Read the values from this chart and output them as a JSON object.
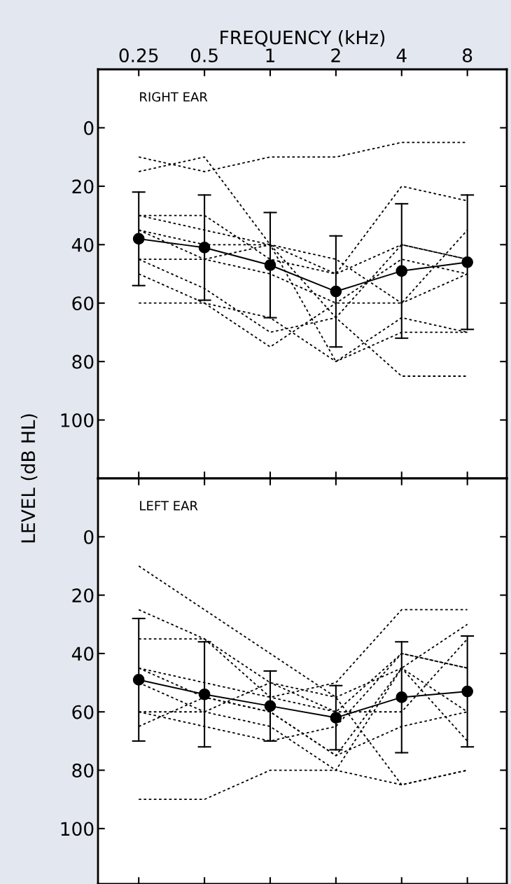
{
  "chart_data": [
    {
      "type": "line",
      "xlabel": "FREQUENCY (kHz)",
      "ylabel": "LEVEL (dB HL)",
      "annotations": [
        "RIGHT EAR"
      ],
      "categories": [
        "0.25",
        "0.5",
        "1",
        "2",
        "4",
        "8"
      ],
      "ylim": [
        120,
        -20
      ],
      "yticks": [
        0,
        20,
        40,
        60,
        80,
        100
      ],
      "grid": false,
      "legend": false,
      "series": [
        {
          "color": "#000000",
          "line_style": "dotted",
          "marker": "none",
          "values": [
            10,
            15,
            10,
            10,
            5,
            5
          ]
        },
        {
          "color": "#000000",
          "line_style": "dotted",
          "marker": "none",
          "values": [
            15,
            10,
            40,
            65,
            85,
            85
          ]
        },
        {
          "color": "#000000",
          "line_style": "dotted",
          "marker": "none",
          "values": [
            30,
            30,
            45,
            50,
            40,
            45
          ]
        },
        {
          "color": "#000000",
          "line_style": "dotted",
          "marker": "none",
          "values": [
            30,
            35,
            40,
            50,
            20,
            25
          ]
        },
        {
          "color": "#000000",
          "line_style": "dotted",
          "marker": "none",
          "values": [
            35,
            40,
            40,
            45,
            60,
            50
          ]
        },
        {
          "color": "#000000",
          "line_style": "dotted",
          "marker": "none",
          "values": [
            35,
            45,
            50,
            60,
            60,
            35
          ]
        },
        {
          "color": "#000000",
          "line_style": "dotted",
          "marker": "none",
          "values": [
            45,
            45,
            40,
            80,
            65,
            70
          ]
        },
        {
          "color": "#000000",
          "line_style": "dotted",
          "marker": "none",
          "values": [
            45,
            55,
            70,
            65,
            40,
            45
          ]
        },
        {
          "color": "#000000",
          "line_style": "dotted",
          "marker": "none",
          "values": [
            50,
            60,
            65,
            80,
            70,
            70
          ]
        },
        {
          "color": "#000000",
          "line_style": "dotted",
          "marker": "none",
          "values": [
            60,
            60,
            75,
            60,
            45,
            50
          ]
        },
        {
          "color": "#000000",
          "line_style": "solid",
          "marker": "circle",
          "values": [
            38,
            41,
            47,
            56,
            49,
            46
          ],
          "errors": [
            [
              22,
              54
            ],
            [
              23,
              59
            ],
            [
              29,
              65
            ],
            [
              37,
              75
            ],
            [
              26,
              72
            ],
            [
              23,
              69
            ]
          ]
        }
      ]
    },
    {
      "type": "line",
      "annotations": [
        "LEFT EAR"
      ],
      "tick_labels": "y",
      "categories": [
        "0.25",
        "0.5",
        "1",
        "2",
        "4",
        "8"
      ],
      "ylim": [
        119,
        -20
      ],
      "yticks": [
        0,
        20,
        40,
        60,
        80,
        100
      ],
      "grid": false,
      "legend": false,
      "series": [
        {
          "color": "#000000",
          "line_style": "dotted",
          "marker": "none",
          "values": [
            10,
            25,
            40,
            55,
            85,
            80
          ]
        },
        {
          "color": "#000000",
          "line_style": "dotted",
          "marker": "none",
          "values": [
            25,
            35,
            50,
            55,
            45,
            60
          ]
        },
        {
          "color": "#000000",
          "line_style": "dotted",
          "marker": "none",
          "values": [
            35,
            35,
            55,
            60,
            40,
            45
          ]
        },
        {
          "color": "#000000",
          "line_style": "dotted",
          "marker": "none",
          "values": [
            45,
            50,
            55,
            50,
            25,
            25
          ]
        },
        {
          "color": "#000000",
          "line_style": "dotted",
          "marker": "none",
          "values": [
            45,
            55,
            60,
            75,
            45,
            30
          ]
        },
        {
          "color": "#000000",
          "line_style": "dotted",
          "marker": "none",
          "values": [
            50,
            60,
            65,
            80,
            45,
            70
          ]
        },
        {
          "color": "#000000",
          "line_style": "dotted",
          "marker": "none",
          "values": [
            60,
            60,
            50,
            60,
            60,
            35
          ]
        },
        {
          "color": "#000000",
          "line_style": "dotted",
          "marker": "none",
          "values": [
            60,
            65,
            70,
            65,
            40,
            45
          ]
        },
        {
          "color": "#000000",
          "line_style": "dotted",
          "marker": "none",
          "values": [
            65,
            55,
            60,
            75,
            65,
            60
          ]
        },
        {
          "color": "#000000",
          "line_style": "dotted",
          "marker": "none",
          "values": [
            90,
            90,
            80,
            80,
            85,
            80
          ]
        },
        {
          "color": "#000000",
          "line_style": "solid",
          "marker": "circle",
          "values": [
            49,
            54,
            58,
            62,
            55,
            53
          ],
          "errors": [
            [
              28,
              70
            ],
            [
              36,
              72
            ],
            [
              46,
              70
            ],
            [
              51,
              73
            ],
            [
              36,
              74
            ],
            [
              34,
              72
            ]
          ]
        }
      ]
    }
  ]
}
